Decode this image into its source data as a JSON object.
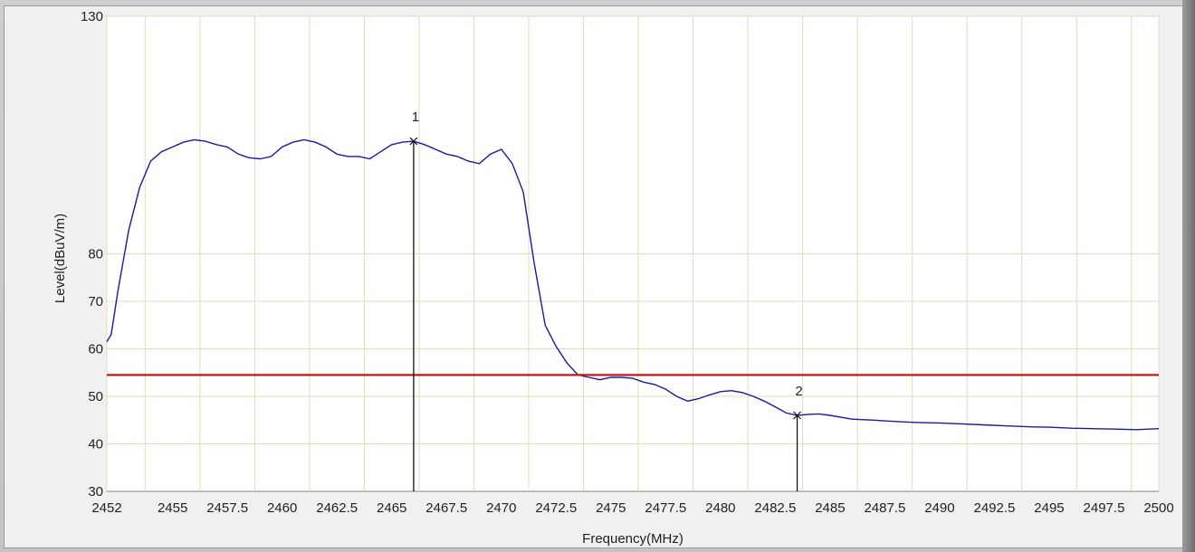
{
  "chart_data": {
    "type": "line",
    "xlabel": "Frequency(MHz)",
    "ylabel": "Level(dBuV/m)",
    "xlim": [
      2452,
      2500
    ],
    "ylim": [
      30,
      130
    ],
    "x_ticks": [
      "2452",
      "2455",
      "2457.5",
      "2460",
      "2462.5",
      "2465",
      "2467.5",
      "2470",
      "2472.5",
      "2475",
      "2477.5",
      "2480",
      "2482.5",
      "2485",
      "2487.5",
      "2490",
      "2492.5",
      "2495",
      "2497.5",
      "2500"
    ],
    "x_tick_values": [
      2452,
      2455,
      2457.5,
      2460,
      2462.5,
      2465,
      2467.5,
      2470,
      2472.5,
      2475,
      2477.5,
      2480,
      2482.5,
      2485,
      2487.5,
      2490,
      2492.5,
      2495,
      2497.5,
      2500
    ],
    "x_grid_values": [
      2452,
      2453.75,
      2456.25,
      2458.75,
      2461.25,
      2463.75,
      2466.25,
      2468.75,
      2471.25,
      2473.75,
      2476.25,
      2478.75,
      2481.25,
      2483.75,
      2486.25,
      2488.75,
      2491.25,
      2493.75,
      2496.25,
      2498.75,
      2500
    ],
    "y_ticks": [
      "30",
      "40",
      "50",
      "60",
      "70",
      "80",
      "130"
    ],
    "y_tick_values": [
      30,
      40,
      50,
      60,
      70,
      80,
      130
    ],
    "y_grid_values": [
      40,
      50,
      60,
      70,
      80,
      130
    ],
    "grid": true,
    "series": [
      {
        "color": "#1a1aa0",
        "x": [
          2452,
          2452.2,
          2452.5,
          2453,
          2453.5,
          2454,
          2454.5,
          2455,
          2455.5,
          2456,
          2456.5,
          2457,
          2457.5,
          2458,
          2458.5,
          2459,
          2459.5,
          2460,
          2460.5,
          2461,
          2461.5,
          2462,
          2462.5,
          2463,
          2463.5,
          2464,
          2464.5,
          2465,
          2465.5,
          2466,
          2466.5,
          2467,
          2467.5,
          2468,
          2468.5,
          2469,
          2469.5,
          2470,
          2470.5,
          2471,
          2471.5,
          2472,
          2472.5,
          2473,
          2473.5,
          2474,
          2474.5,
          2475,
          2475.5,
          2476,
          2476.5,
          2477,
          2477.5,
          2478,
          2478.5,
          2479,
          2479.5,
          2480,
          2480.5,
          2481,
          2481.5,
          2482,
          2482.5,
          2483,
          2483.5,
          2484,
          2484.5,
          2485,
          2486,
          2487,
          2488,
          2489,
          2490,
          2491,
          2492,
          2493,
          2494,
          2495,
          2496,
          2497,
          2498,
          2499,
          2500
        ],
        "y": [
          61.5,
          63,
          72,
          85,
          94,
          99.5,
          101.5,
          102.5,
          103.5,
          104,
          103.7,
          103,
          102.5,
          101,
          100.2,
          100,
          100.5,
          102.5,
          103.5,
          104,
          103.5,
          102.5,
          101,
          100.5,
          100.5,
          100,
          101.5,
          103,
          103.5,
          103.7,
          103,
          102,
          101,
          100.5,
          99.5,
          99,
          101,
          102,
          99,
          93,
          78,
          65,
          60.5,
          57,
          54.5,
          54,
          53.5,
          54,
          54,
          53.8,
          53,
          52.5,
          51.5,
          50,
          49,
          49.5,
          50.3,
          51,
          51.2,
          50.8,
          50,
          49,
          47.8,
          46.5,
          46,
          46.2,
          46.3,
          46,
          45.2,
          45,
          44.7,
          44.5,
          44.4,
          44.2,
          44,
          43.8,
          43.6,
          43.5,
          43.3,
          43.2,
          43.1,
          43,
          43.2
        ]
      }
    ],
    "limit_line": {
      "y": 54.5,
      "color": "#c01818"
    },
    "markers": [
      {
        "label": "1",
        "x": 2466,
        "y": 103.7
      },
      {
        "label": "2",
        "x": 2483.5,
        "y": 46
      }
    ]
  }
}
